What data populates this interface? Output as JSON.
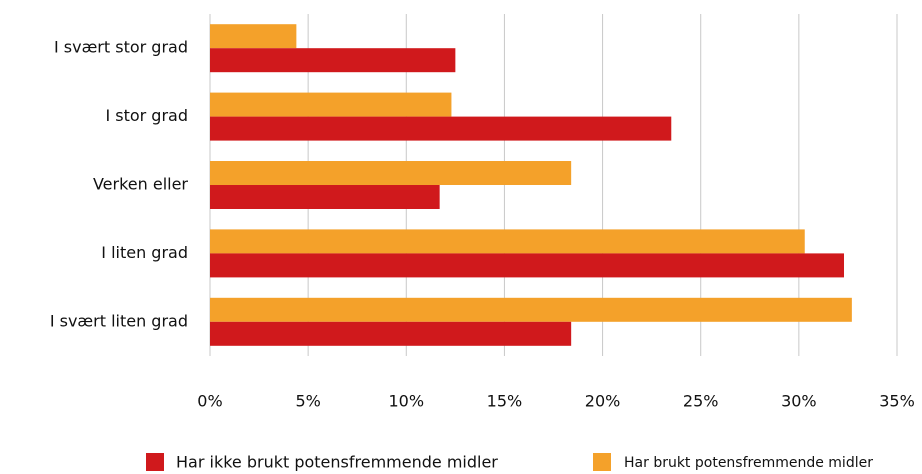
{
  "chart_data": {
    "type": "hbar",
    "categories": [
      "I svært stor grad",
      "I stor grad",
      "Verken eller",
      "I liten grad",
      "I svært liten grad"
    ],
    "series": [
      {
        "name": "Har ikke brukt potensfremmende midler",
        "color": "#d0191c",
        "values": [
          12.5,
          23.5,
          11.7,
          32.3,
          18.4
        ]
      },
      {
        "name": "Har brukt potensfremmende midler",
        "color": "#f4a12a",
        "values": [
          4.4,
          12.3,
          18.4,
          30.3,
          32.7
        ]
      }
    ],
    "xlim": [
      0,
      35
    ],
    "xticks": [
      {
        "value": 0,
        "label": "0%"
      },
      {
        "value": 5,
        "label": "5%"
      },
      {
        "value": 10,
        "label": "10%"
      },
      {
        "value": 15,
        "label": "15%"
      },
      {
        "value": 20,
        "label": "20%"
      },
      {
        "value": 25,
        "label": "25%"
      },
      {
        "value": 30,
        "label": "30%"
      },
      {
        "value": 35,
        "label": "35%"
      }
    ],
    "grid": true
  }
}
